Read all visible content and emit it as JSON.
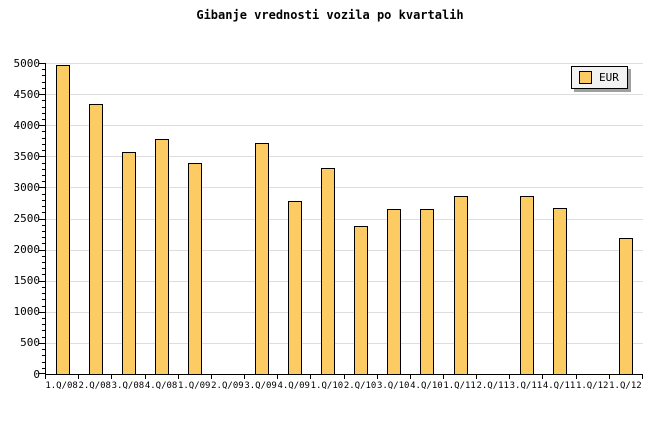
{
  "title": "Gibanje vrednosti vozila po kvartalih",
  "legend": {
    "label": "EUR",
    "position": "top-right"
  },
  "colors": {
    "background": "#FFFFFF",
    "bar_fill": "#FDCB64",
    "bar_border": "#000000",
    "grid": "#DEDEDE",
    "axis": "#000000",
    "text": "#000000",
    "legend_bg": "#F2F2F2",
    "legend_shadow": "#A0A0A0"
  },
  "chart_data": {
    "type": "bar",
    "title": "Gibanje vrednosti vozila po kvartalih",
    "xlabel": "",
    "ylabel": "",
    "categories": [
      "1.Q/08",
      "2.Q/08",
      "3.Q/08",
      "4.Q/08",
      "1.Q/09",
      "2.Q/09",
      "3.Q/09",
      "4.Q/09",
      "1.Q/10",
      "2.Q/10",
      "3.Q/10",
      "4.Q/10",
      "1.Q/11",
      "2.Q/11",
      "3.Q/11",
      "4.Q/11",
      "1.Q/12",
      "1.Q/12"
    ],
    "series": [
      {
        "name": "EUR",
        "values": [
          4950,
          4320,
          3560,
          3770,
          3380,
          null,
          3700,
          2770,
          3300,
          2370,
          2640,
          2640,
          2840,
          null,
          2840,
          2650,
          null,
          2170
        ]
      }
    ],
    "ylim": [
      0,
      5000
    ],
    "ytick_step": 500,
    "y_minor_tick_step": 100,
    "ytick_labels": [
      "0",
      "500",
      "1000",
      "1500",
      "2000",
      "2500",
      "3000",
      "3500",
      "4000",
      "4500",
      "5000"
    ],
    "grid": "horizontal",
    "legend_position": "top-right"
  }
}
